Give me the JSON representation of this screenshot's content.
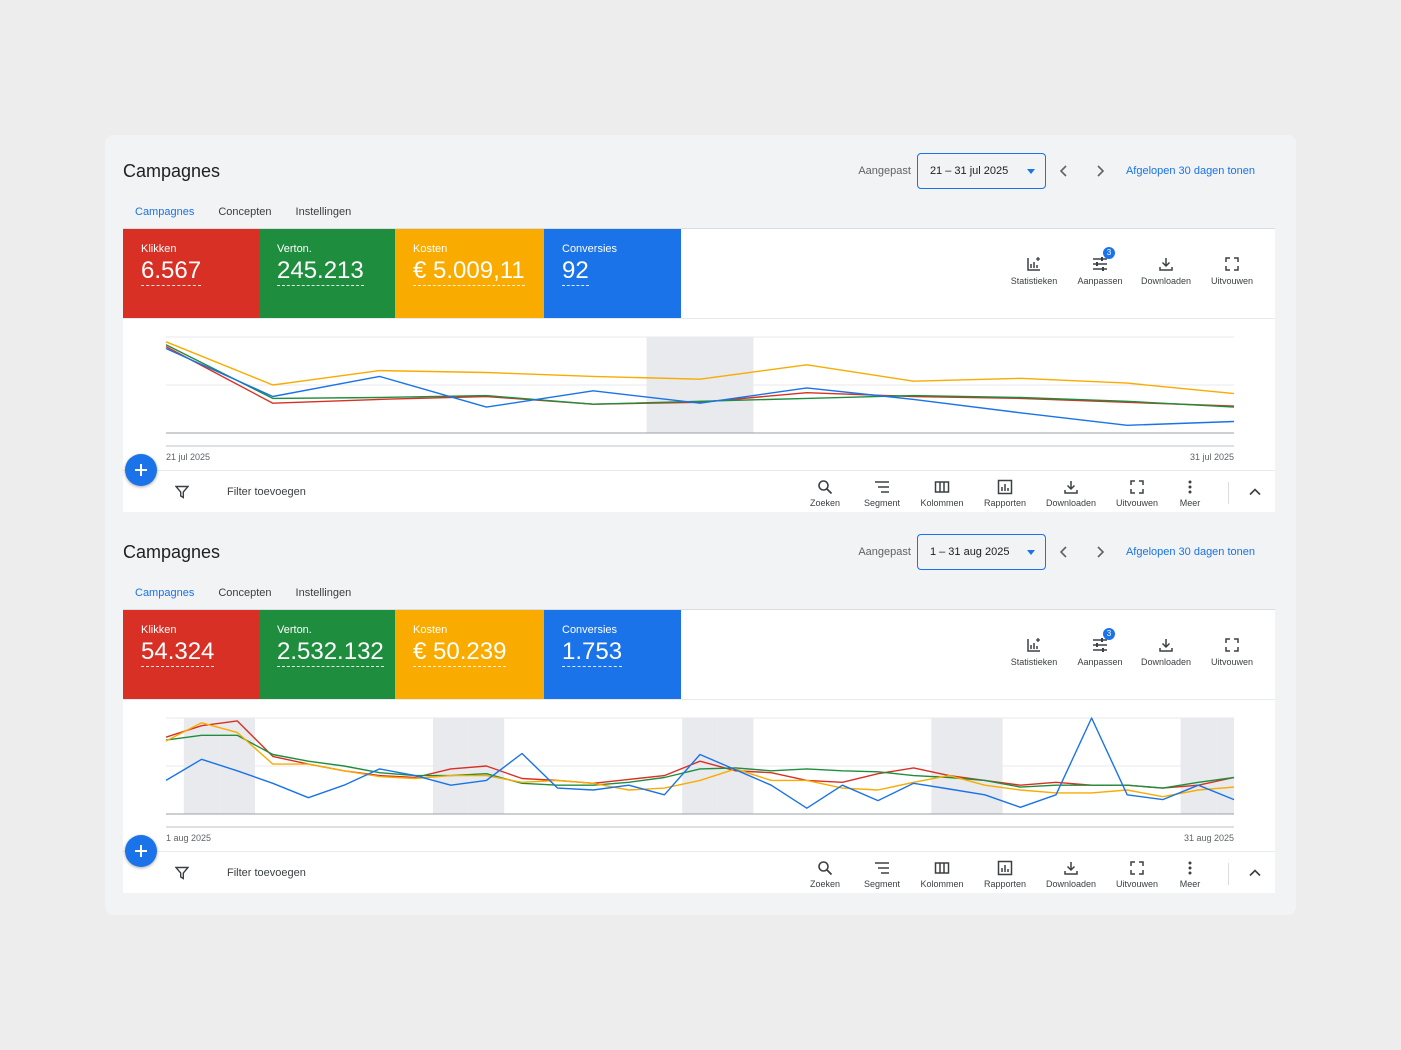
{
  "panels": [
    {
      "title": "Campagnes",
      "date_label": "Aangepast",
      "date_range": "21 – 31 jul 2025",
      "show_last_30": "Afgelopen 30 dagen tonen",
      "tabs": [
        {
          "label": "Campagnes",
          "active": true
        },
        {
          "label": "Concepten",
          "active": false
        },
        {
          "label": "Instellingen",
          "active": false
        }
      ],
      "metrics": [
        {
          "label": "Klikken",
          "value": "6.567",
          "color": "#d93025"
        },
        {
          "label": "Verton.",
          "value": "245.213",
          "color": "#1e8e3e"
        },
        {
          "label": "Kosten",
          "value": "€ 5.009,11",
          "color": "#f9ab00"
        },
        {
          "label": "Conversies",
          "value": "92",
          "color": "#1a73e8"
        }
      ],
      "tools": [
        {
          "label": "Statistieken",
          "icon": "insights-icon"
        },
        {
          "label": "Aanpassen",
          "icon": "tune-icon",
          "badge": "3"
        },
        {
          "label": "Downloaden",
          "icon": "download-icon"
        },
        {
          "label": "Uitvouwen",
          "icon": "expand-icon"
        }
      ],
      "filter_label": "Filter toevoegen",
      "bottom_tools": [
        {
          "label": "Zoeken",
          "icon": "search-icon"
        },
        {
          "label": "Segment",
          "icon": "segment-icon"
        },
        {
          "label": "Kolommen",
          "icon": "columns-icon"
        },
        {
          "label": "Rapporten",
          "icon": "reports-icon"
        },
        {
          "label": "Downloaden",
          "icon": "download-icon"
        },
        {
          "label": "Uitvouwen",
          "icon": "expand-icon"
        },
        {
          "label": "Meer",
          "icon": "more-vert-icon"
        }
      ],
      "chart_data": {
        "type": "line",
        "x_start_label": "21 jul 2025",
        "x_end_label": "31 jul 2025",
        "x": [
          "21 jul",
          "22 jul",
          "23 jul",
          "24 jul",
          "25 jul",
          "26 jul",
          "27 jul",
          "28 jul",
          "29 jul",
          "30 jul",
          "31 jul"
        ],
        "ylim": [
          0,
          100
        ],
        "shaded_x": [
          "26 jul"
        ],
        "series": [
          {
            "color": "#d93025",
            "values": [
              90,
              31,
              35,
              38,
              30,
              32,
              42,
              38,
              36,
              32,
              28
            ]
          },
          {
            "color": "#1e8e3e",
            "values": [
              92,
              36,
              37,
              39,
              30,
              33,
              36,
              39,
              37,
              33,
              27
            ]
          },
          {
            "color": "#f9ab00",
            "values": [
              95,
              50,
              65,
              63,
              59,
              56,
              71,
              54,
              57,
              52,
              41
            ]
          },
          {
            "color": "#1a73e8",
            "values": [
              88,
              38,
              59,
              27,
              44,
              31,
              47,
              35,
              21,
              8,
              12
            ]
          }
        ]
      }
    },
    {
      "title": "Campagnes",
      "date_label": "Aangepast",
      "date_range": "1 – 31 aug 2025",
      "show_last_30": "Afgelopen 30 dagen tonen",
      "tabs": [
        {
          "label": "Campagnes",
          "active": true
        },
        {
          "label": "Concepten",
          "active": false
        },
        {
          "label": "Instellingen",
          "active": false
        }
      ],
      "metrics": [
        {
          "label": "Klikken",
          "value": "54.324",
          "color": "#d93025"
        },
        {
          "label": "Verton.",
          "value": "2.532.132",
          "color": "#1e8e3e"
        },
        {
          "label": "Kosten",
          "value": "€ 50.239",
          "color": "#f9ab00"
        },
        {
          "label": "Conversies",
          "value": "1.753",
          "color": "#1a73e8"
        }
      ],
      "tools": [
        {
          "label": "Statistieken",
          "icon": "insights-icon"
        },
        {
          "label": "Aanpassen",
          "icon": "tune-icon",
          "badge": "3"
        },
        {
          "label": "Downloaden",
          "icon": "download-icon"
        },
        {
          "label": "Uitvouwen",
          "icon": "expand-icon"
        }
      ],
      "filter_label": "Filter toevoegen",
      "bottom_tools": [
        {
          "label": "Zoeken",
          "icon": "search-icon"
        },
        {
          "label": "Segment",
          "icon": "segment-icon"
        },
        {
          "label": "Kolommen",
          "icon": "columns-icon"
        },
        {
          "label": "Rapporten",
          "icon": "reports-icon"
        },
        {
          "label": "Downloaden",
          "icon": "download-icon"
        },
        {
          "label": "Uitvouwen",
          "icon": "expand-icon"
        },
        {
          "label": "Meer",
          "icon": "more-vert-icon"
        }
      ],
      "chart_data": {
        "type": "line",
        "x_start_label": "1 aug 2025",
        "x_end_label": "31 aug 2025",
        "x": [
          "1 aug",
          "2 aug",
          "3 aug",
          "4 aug",
          "5 aug",
          "6 aug",
          "7 aug",
          "8 aug",
          "9 aug",
          "10 aug",
          "11 aug",
          "12 aug",
          "13 aug",
          "14 aug",
          "15 aug",
          "16 aug",
          "17 aug",
          "18 aug",
          "19 aug",
          "20 aug",
          "21 aug",
          "22 aug",
          "23 aug",
          "24 aug",
          "25 aug",
          "26 aug",
          "27 aug",
          "28 aug",
          "29 aug",
          "30 aug",
          "31 aug"
        ],
        "ylim": [
          0,
          100
        ],
        "shaded_x": [
          "2 aug",
          "3 aug",
          "9 aug",
          "10 aug",
          "16 aug",
          "17 aug",
          "23 aug",
          "24 aug",
          "30 aug",
          "31 aug"
        ],
        "series": [
          {
            "color": "#d93025",
            "values": [
              80,
              92,
              97,
              60,
              52,
              45,
              40,
              38,
              47,
              50,
              37,
              35,
              32,
              36,
              40,
              55,
              45,
              43,
              35,
              33,
              42,
              48,
              40,
              35,
              30,
              33,
              30,
              30,
              27,
              30,
              38
            ]
          },
          {
            "color": "#1e8e3e",
            "values": [
              77,
              82,
              82,
              62,
              55,
              50,
              43,
              40,
              40,
              42,
              32,
              30,
              30,
              33,
              38,
              47,
              48,
              45,
              47,
              45,
              44,
              40,
              38,
              35,
              28,
              30,
              30,
              30,
              27,
              33,
              38
            ]
          },
          {
            "color": "#f9ab00",
            "values": [
              76,
              95,
              85,
              52,
              52,
              45,
              39,
              37,
              40,
              40,
              33,
              35,
              32,
              25,
              27,
              35,
              47,
              35,
              35,
              27,
              25,
              33,
              40,
              30,
              25,
              22,
              22,
              25,
              18,
              25,
              28
            ]
          },
          {
            "color": "#1a73e8",
            "values": [
              35,
              57,
              45,
              32,
              17,
              30,
              47,
              40,
              30,
              35,
              63,
              27,
              25,
              30,
              20,
              62,
              46,
              30,
              6,
              30,
              14,
              32,
              26,
              20,
              7,
              20,
              100,
              20,
              15,
              30,
              15
            ]
          }
        ]
      }
    }
  ]
}
